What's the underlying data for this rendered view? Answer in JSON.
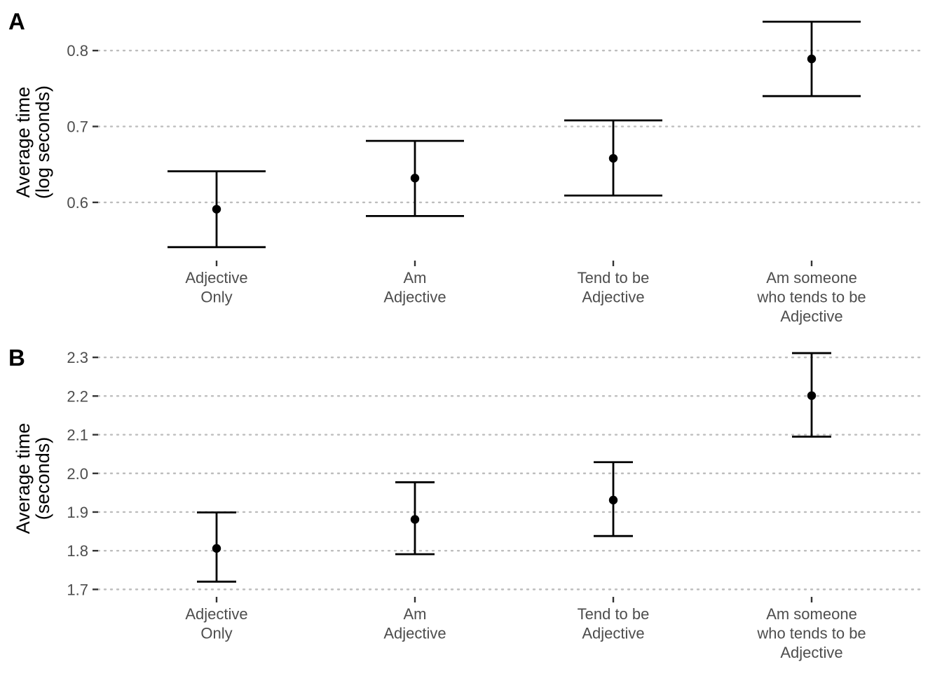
{
  "chart_data": [
    {
      "type": "scatter",
      "panel_label": "A",
      "ylabel": [
        "Average time",
        "(log seconds)"
      ],
      "xlabel": "",
      "categories": [
        [
          "Adjective",
          "Only"
        ],
        [
          "Am",
          "Adjective"
        ],
        [
          "Tend to be",
          "Adjective"
        ],
        [
          "Am someone",
          "who tends to be",
          "Adjective"
        ]
      ],
      "values": [
        0.591,
        0.632,
        0.658,
        0.789
      ],
      "lower": [
        0.541,
        0.582,
        0.609,
        0.74
      ],
      "upper": [
        0.641,
        0.681,
        0.708,
        0.838
      ],
      "yticks": [
        0.6,
        0.7,
        0.8
      ],
      "ytick_labels": [
        "0.6",
        "0.7",
        "0.8"
      ],
      "ylim": [
        0.527,
        0.85
      ],
      "grid": "horizontal dotted",
      "legend": "none"
    },
    {
      "type": "scatter",
      "panel_label": "B",
      "ylabel": [
        "Average time",
        "(seconds)"
      ],
      "xlabel": "",
      "categories": [
        [
          "Adjective",
          "Only"
        ],
        [
          "Am",
          "Adjective"
        ],
        [
          "Tend to be",
          "Adjective"
        ],
        [
          "Am someone",
          "who tends to be",
          "Adjective"
        ]
      ],
      "values": [
        1.806,
        1.881,
        1.931,
        2.201
      ],
      "lower": [
        1.72,
        1.791,
        1.838,
        2.095
      ],
      "upper": [
        1.899,
        1.977,
        2.029,
        2.311
      ],
      "yticks": [
        1.7,
        1.8,
        1.9,
        2.0,
        2.1,
        2.2,
        2.3
      ],
      "ytick_labels": [
        "1.7",
        "1.8",
        "1.9",
        "2.0",
        "2.1",
        "2.2",
        "2.3"
      ],
      "ylim": [
        1.688,
        2.322
      ],
      "grid": "horizontal dotted",
      "legend": "none"
    }
  ]
}
